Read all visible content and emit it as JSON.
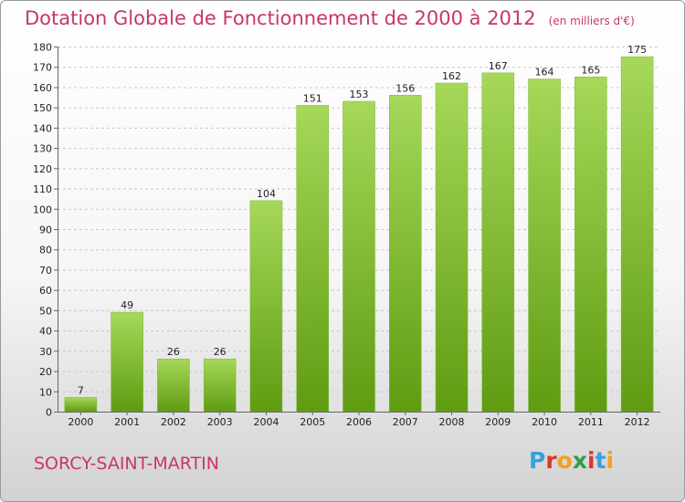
{
  "title": "Dotation Globale de Fonctionnement de 2000 à 2012",
  "subtitle": "(en milliers d'€)",
  "place": "SORCY-SAINT-MARTIN",
  "logo": {
    "letters": [
      "P",
      "r",
      "o",
      "x",
      "i",
      "t",
      "i"
    ],
    "colors": [
      "#3aa0d8",
      "#e2332a",
      "#f0a21f",
      "#2f9e44",
      "#e2332a",
      "#3aa0d8",
      "#f0a21f"
    ]
  },
  "colors": {
    "bar_light": "#a6d85a",
    "bar_dark": "#5f9c12",
    "title": "#c8366a"
  },
  "chart_data": {
    "type": "bar",
    "title": "Dotation Globale de Fonctionnement de 2000 à 2012",
    "subtitle": "(en milliers d'€)",
    "xlabel": "",
    "ylabel": "",
    "ylim": [
      0,
      180
    ],
    "ytick_step": 10,
    "grid": true,
    "categories": [
      "2000",
      "2001",
      "2002",
      "2003",
      "2004",
      "2005",
      "2006",
      "2007",
      "2008",
      "2009",
      "2010",
      "2011",
      "2012"
    ],
    "values": [
      7,
      49,
      26,
      26,
      104,
      151,
      153,
      156,
      162,
      167,
      164,
      165,
      175
    ]
  }
}
